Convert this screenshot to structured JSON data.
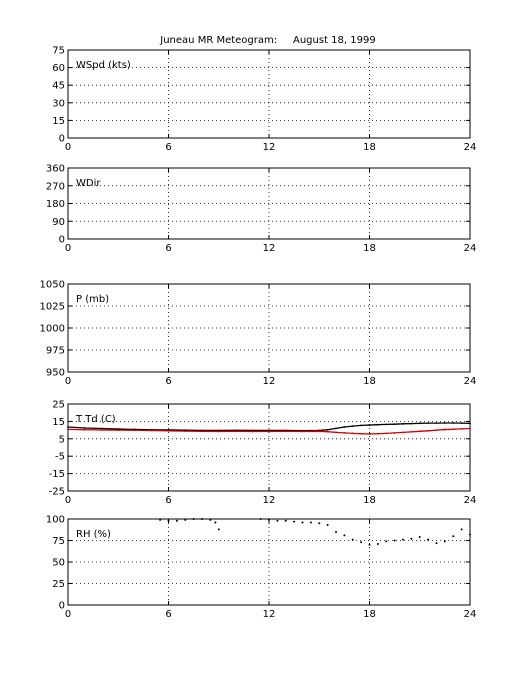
{
  "figure": {
    "title": "Juneau MR Meteogram:     August 18, 1999"
  },
  "colors": {
    "temperature": "#000000",
    "dewpoint": "#cc0000",
    "rh": "#000000",
    "grid": "#000000",
    "axes": "#000000"
  },
  "chart_data": [
    {
      "type": "line",
      "label": "WSpd (kts)",
      "xlim": [
        0,
        24
      ],
      "ylim": [
        0,
        75
      ],
      "xticks": [
        0,
        6,
        12,
        18,
        24
      ],
      "yticks": [
        0,
        15,
        30,
        45,
        60,
        75
      ],
      "grid": true,
      "series": []
    },
    {
      "type": "line",
      "label": "WDir",
      "xlim": [
        0,
        24
      ],
      "ylim": [
        0,
        360
      ],
      "xticks": [
        0,
        6,
        12,
        18,
        24
      ],
      "yticks": [
        0,
        90,
        180,
        270,
        360
      ],
      "grid": true,
      "series": []
    },
    {
      "type": "line",
      "label": "P (mb)",
      "xlim": [
        0,
        24
      ],
      "ylim": [
        950,
        1050
      ],
      "xticks": [
        0,
        6,
        12,
        18,
        24
      ],
      "yticks": [
        950,
        975,
        1000,
        1025,
        1050
      ],
      "grid": true,
      "series": []
    },
    {
      "type": "line",
      "label": "T Td (C)",
      "xlim": [
        0,
        24
      ],
      "ylim": [
        -25,
        25
      ],
      "xticks": [
        0,
        6,
        12,
        18,
        24
      ],
      "yticks": [
        -25,
        -15,
        -5,
        5,
        15,
        25
      ],
      "grid": true,
      "series": [
        {
          "color": "#000000",
          "x": [
            0,
            1,
            2,
            3,
            4,
            5,
            6,
            7,
            8,
            9,
            10,
            11,
            12,
            13,
            14,
            15,
            15.5,
            16,
            16.5,
            17,
            17.5,
            18,
            18.5,
            19,
            19.5,
            20,
            20.5,
            21,
            21.5,
            22,
            22.5,
            23,
            23.5,
            24
          ],
          "y": [
            11.8,
            11.2,
            10.9,
            10.6,
            10.4,
            10.2,
            10.1,
            10.0,
            9.8,
            9.8,
            9.9,
            9.8,
            9.8,
            9.8,
            9.7,
            9.8,
            10.2,
            11.0,
            11.8,
            12.3,
            12.7,
            12.9,
            13.1,
            13.3,
            13.4,
            13.6,
            13.7,
            13.9,
            14.0,
            14.0,
            14.1,
            14.1,
            14.0,
            13.9
          ]
        },
        {
          "color": "#cc0000",
          "x": [
            0,
            1,
            2,
            3,
            4,
            5,
            6,
            7,
            8,
            9,
            10,
            11,
            12,
            13,
            14,
            15,
            15.5,
            16,
            16.5,
            17,
            17.5,
            18,
            18.5,
            19,
            19.5,
            20,
            20.5,
            21,
            21.5,
            22,
            22.5,
            23,
            23.5,
            24
          ],
          "y": [
            10.4,
            10.2,
            10.1,
            10.0,
            9.9,
            9.8,
            9.6,
            9.4,
            9.3,
            9.2,
            9.3,
            9.2,
            9.2,
            9.3,
            9.2,
            9.3,
            9.1,
            8.7,
            8.4,
            8.1,
            7.9,
            7.8,
            7.9,
            8.1,
            8.4,
            8.7,
            9.0,
            9.3,
            9.6,
            10.0,
            10.3,
            10.5,
            10.7,
            10.9
          ]
        }
      ]
    },
    {
      "type": "scatter",
      "label": "RH (%)",
      "xlim": [
        0,
        24
      ],
      "ylim": [
        0,
        100
      ],
      "xticks": [
        0,
        6,
        12,
        18,
        24
      ],
      "yticks": [
        0,
        25,
        50,
        75,
        100
      ],
      "grid": true,
      "series": [
        {
          "color": "#000000",
          "x": [
            5.5,
            6,
            6.5,
            7,
            7.5,
            8,
            8.5,
            8.8,
            9.0,
            11.5,
            12,
            12.5,
            13,
            13.5,
            14,
            14.5,
            15,
            15.5,
            16,
            16.5,
            17,
            17.5,
            18,
            18.5,
            19,
            19.5,
            20,
            20.5,
            21,
            21.5,
            22,
            22.5,
            23,
            23.5,
            24
          ],
          "y": [
            99,
            98,
            98,
            99,
            100,
            100,
            99,
            96,
            88,
            100,
            99,
            98,
            98,
            97,
            96,
            96,
            95,
            93,
            85,
            81,
            76,
            73,
            70,
            71,
            74,
            75,
            76,
            77,
            79,
            76,
            72,
            74,
            80,
            88,
            82
          ]
        }
      ]
    }
  ]
}
